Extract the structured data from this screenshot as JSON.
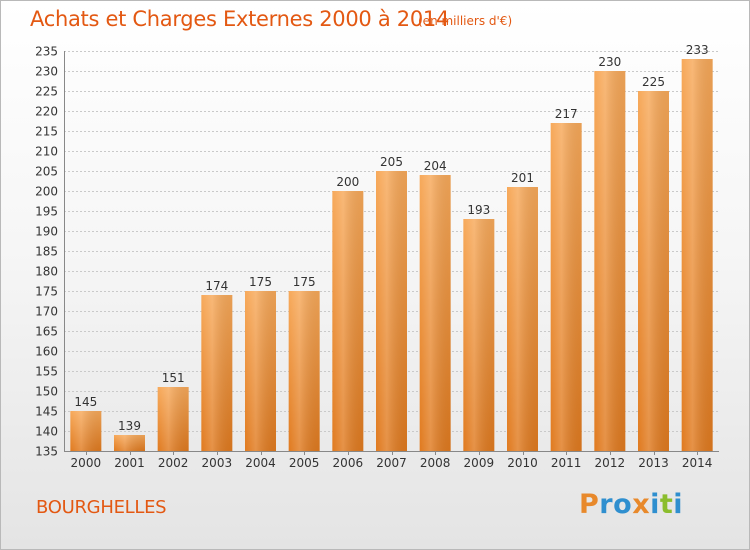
{
  "header": {
    "title": "Achats et Charges Externes 2000 à 2014",
    "subtitle": "(en milliers d'€)"
  },
  "footer": {
    "commune": "BOURGHELLES",
    "logo_text": "Proxiti"
  },
  "colors": {
    "title": "#e35812",
    "bar_light": "#f7a95a",
    "bar_dark": "#e07a1f",
    "logo_letters": [
      "#e8892b",
      "#2f8fcf",
      "#2f8fcf",
      "#e8892b",
      "#2f8fcf",
      "#8bbd2d",
      "#2f8fcf"
    ]
  },
  "chart_data": {
    "type": "bar",
    "title": "Achats et Charges Externes 2000 à 2014",
    "xlabel": "",
    "ylabel": "",
    "categories": [
      "2000",
      "2001",
      "2002",
      "2003",
      "2004",
      "2005",
      "2006",
      "2007",
      "2008",
      "2009",
      "2010",
      "2011",
      "2012",
      "2013",
      "2014"
    ],
    "values": [
      145,
      139,
      151,
      174,
      175,
      175,
      200,
      205,
      204,
      193,
      201,
      217,
      230,
      225,
      233
    ],
    "ylim": [
      135,
      235
    ],
    "yticks": [
      135,
      140,
      145,
      150,
      155,
      160,
      165,
      170,
      175,
      180,
      185,
      190,
      195,
      200,
      205,
      210,
      215,
      220,
      225,
      230,
      235
    ],
    "grid": true,
    "legend": "none"
  }
}
